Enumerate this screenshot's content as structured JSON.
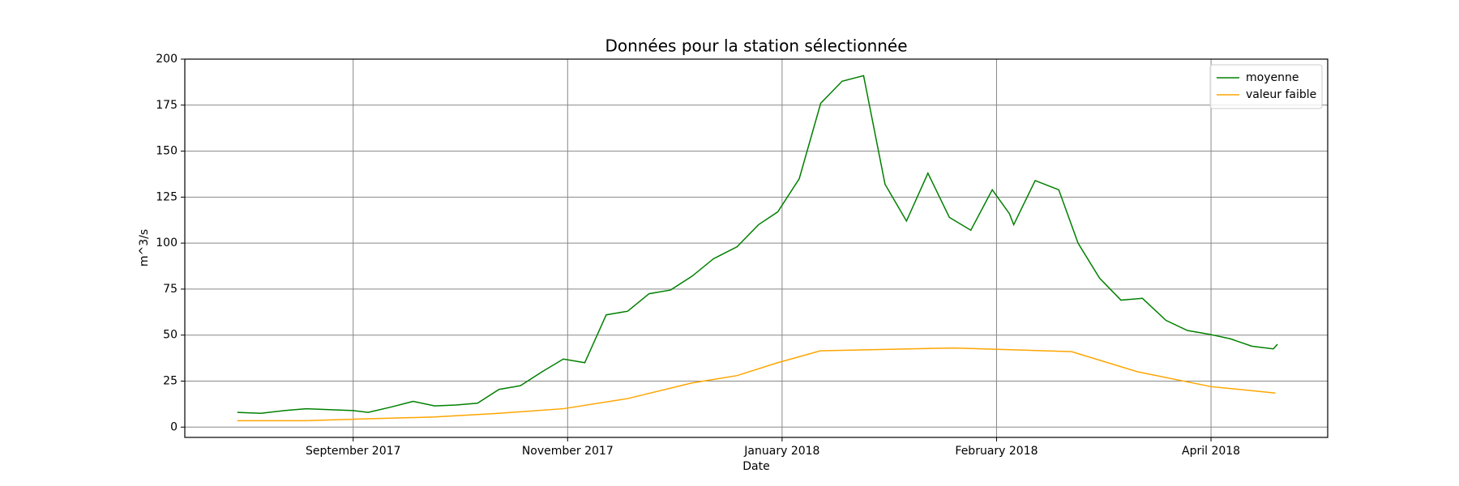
{
  "chart_data": {
    "type": "line",
    "title": "Données pour la station sélectionnée",
    "x_label": "Date",
    "y_label": "m^3/s",
    "xlim": [
      0.215,
      5.544
    ],
    "xticks": [
      {
        "value": 1,
        "label": "September 2017"
      },
      {
        "value": 2,
        "label": "November 2017"
      },
      {
        "value": 3,
        "label": "January 2018"
      },
      {
        "value": 4,
        "label": "February 2018"
      },
      {
        "value": 5,
        "label": "April 2018"
      }
    ],
    "ylim": [
      -5.6,
      200
    ],
    "yticks": [
      0,
      25,
      50,
      75,
      100,
      125,
      150,
      175,
      200
    ],
    "grid": true,
    "legend": "upper right",
    "series": [
      {
        "name": "moyenne",
        "color": "green",
        "x": [
          0.46,
          0.57,
          0.68,
          0.78,
          0.89,
          1.0,
          1.07,
          1.18,
          1.28,
          1.38,
          1.48,
          1.58,
          1.68,
          1.78,
          1.88,
          1.98,
          2.08,
          2.18,
          2.28,
          2.38,
          2.48,
          2.58,
          2.68,
          2.79,
          2.89,
          2.98,
          3.08,
          3.18,
          3.28,
          3.38,
          3.48,
          3.58,
          3.68,
          3.78,
          3.88,
          3.98,
          4.06,
          4.08,
          4.18,
          4.29,
          4.38,
          4.48,
          4.58,
          4.68,
          4.79,
          4.89,
          4.99,
          5.09,
          5.19,
          5.29,
          5.31
        ],
        "values": [
          8,
          7.5,
          9,
          10,
          9.5,
          9,
          8,
          11,
          14,
          11.5,
          12,
          13,
          20.5,
          22.5,
          30,
          37,
          35,
          61,
          63,
          72.5,
          74.5,
          82,
          91.5,
          98,
          110,
          117,
          135,
          176,
          188,
          191,
          132,
          112,
          138,
          114,
          107,
          129,
          116,
          110,
          134,
          129,
          100,
          81,
          69,
          70,
          58,
          52.5,
          50.5,
          48,
          44,
          42.5,
          45
        ]
      },
      {
        "name": "valeur faible",
        "color": "orange",
        "x": [
          0.46,
          0.78,
          1.07,
          1.38,
          1.68,
          1.98,
          2.28,
          2.58,
          2.79,
          2.98,
          3.18,
          3.8,
          4.35,
          4.66,
          5.0,
          5.3
        ],
        "values": [
          3.5,
          3.5,
          4.5,
          5.5,
          7.5,
          10,
          15.5,
          24,
          28,
          35,
          41.5,
          43,
          41,
          30,
          22,
          18.5
        ]
      }
    ]
  }
}
